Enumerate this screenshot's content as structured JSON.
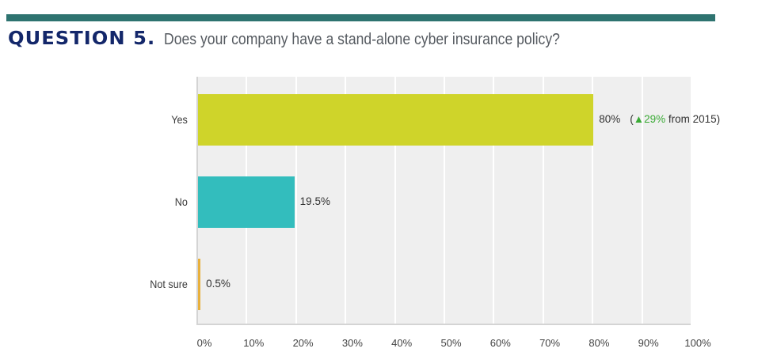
{
  "header": {
    "question_number": "QUESTION 5.",
    "question_text": "Does your company have a stand-alone cyber insurance policy?",
    "bar_color": "#2e7370"
  },
  "chart_data": {
    "type": "bar",
    "orientation": "horizontal",
    "title": "Does your company have a stand-alone cyber insurance policy?",
    "categories": [
      "Yes",
      "No",
      "Not sure"
    ],
    "values": [
      80,
      19.5,
      0.5
    ],
    "value_labels": [
      "80%",
      "19.5%",
      "0.5%"
    ],
    "colors": [
      "#cfd42a",
      "#33bdbd",
      "#e8b03c"
    ],
    "annotation": {
      "category": "Yes",
      "prefix": "(",
      "arrow": "▲",
      "change": "29%",
      "suffix": " from 2015)",
      "change_color": "#3aaa35"
    },
    "xlabel": "",
    "ylabel": "",
    "xlim": [
      0,
      100
    ],
    "x_ticks": [
      "0%",
      "10%",
      "20%",
      "30%",
      "40%",
      "50%",
      "60%",
      "70%",
      "80%",
      "90%",
      "100%"
    ],
    "grid": true,
    "legend": null
  }
}
